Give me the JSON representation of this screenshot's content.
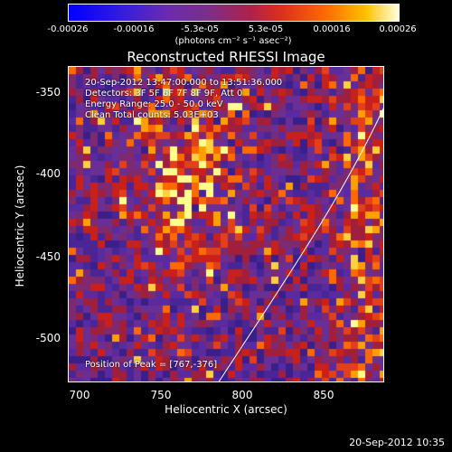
{
  "colorbar": {
    "ticks": [
      "-0.00026",
      "-0.00016",
      "-5.3e-05",
      "5.3e-05",
      "0.00016",
      "0.00026"
    ],
    "units": "(photons cm⁻² s⁻¹ asec⁻²)"
  },
  "plot": {
    "title": "Reconstructed RHESSI Image",
    "info_lines": [
      "20-Sep-2012 13:47:00.000 to 13:51:36.000",
      "Detectors: 3F 5F 6F 7F 8F 9F, Att 0",
      "Energy Range: 25.0 - 50.0 keV",
      "Clean    Total counts: 5.03E+03"
    ],
    "peak_text": "Position of Peak = [767,-376]",
    "xlabel": "Heliocentric X (arcsec)",
    "ylabel": "Heliocentric Y (arcsec)",
    "xticks": [
      "700",
      "750",
      "800",
      "850"
    ],
    "yticks": [
      "-350",
      "-400",
      "-450",
      "-500"
    ]
  },
  "footer": {
    "timestamp": "20-Sep-2012 10:35"
  }
}
